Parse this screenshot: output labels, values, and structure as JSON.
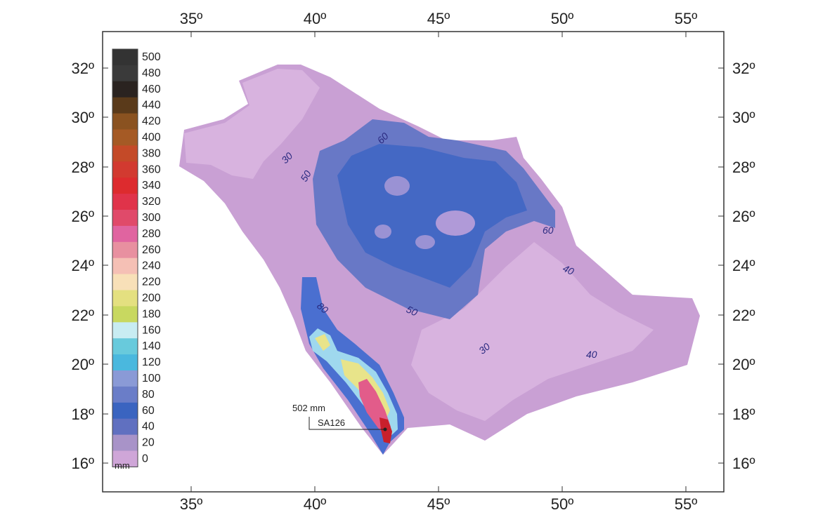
{
  "axes": {
    "lon_ticks": [
      "35º",
      "40º",
      "45º",
      "50º",
      "55º"
    ],
    "lat_ticks": [
      "32º",
      "30º",
      "28º",
      "26º",
      "24º",
      "22º",
      "20º",
      "18º",
      "16º"
    ]
  },
  "legend": {
    "unit": "mm",
    "levels": [
      "500",
      "480",
      "460",
      "440",
      "420",
      "400",
      "380",
      "360",
      "340",
      "320",
      "300",
      "280",
      "260",
      "240",
      "220",
      "200",
      "180",
      "160",
      "140",
      "120",
      "100",
      "80",
      "60",
      "40",
      "20",
      "0"
    ],
    "colors": [
      "#333333",
      "#3a3a3a",
      "#2a2320",
      "#5a3a1a",
      "#8a5220",
      "#a55a25",
      "#c44a28",
      "#d23a30",
      "#dd2b2e",
      "#e0334a",
      "#e04a6a",
      "#e064a0",
      "#e890a0",
      "#f5c0b5",
      "#f8e0b8",
      "#e4e080",
      "#c8d860",
      "#c8ecf2",
      "#68cadc",
      "#4ab8de",
      "#8a9ad6",
      "#6a7dc8",
      "#3a64c0",
      "#6070c0",
      "#a893c8",
      "#cfa6d8"
    ]
  },
  "map": {
    "colors": {
      "base": "#c9a0d4",
      "light": "#d8b3df",
      "mid": "#a98fcc",
      "blue": "#6878c6",
      "deep_blue": "#4468c4",
      "pale_center": "#b09ad8",
      "ring_blue": "#4a6fd0",
      "cyan": "#9fd8ee",
      "yellow": "#e8e48a",
      "pink": "#e25c8a",
      "red": "#c8202c",
      "sea": "#ffffff"
    },
    "contour_labels": [
      {
        "text": "30"
      },
      {
        "text": "60"
      },
      {
        "text": "50"
      },
      {
        "text": "60"
      },
      {
        "text": "40"
      },
      {
        "text": "80"
      },
      {
        "text": "50"
      },
      {
        "text": "30"
      },
      {
        "text": "40"
      }
    ],
    "station": {
      "value_label": "502 mm",
      "name": "SA126"
    }
  }
}
